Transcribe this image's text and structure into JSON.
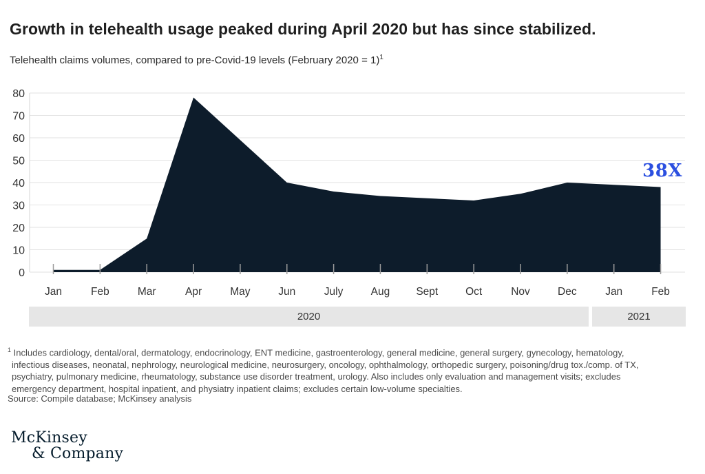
{
  "header": {
    "title": "Growth in telehealth usage peaked during April 2020 but has since stabilized."
  },
  "subtitle": {
    "text": "Telehealth claims volumes, compared to pre-Covid-19 levels (February 2020 = 1)",
    "footnote_marker": "1"
  },
  "chart_data": {
    "type": "area",
    "title": "Growth in telehealth usage peaked during April 2020 but has since stabilized.",
    "subtitle": "Telehealth claims volumes, compared to pre-Covid-19 levels (February 2020 = 1)",
    "x": [
      "Jan",
      "Feb",
      "Mar",
      "Apr",
      "May",
      "Jun",
      "July",
      "Aug",
      "Sept",
      "Oct",
      "Nov",
      "Dec",
      "Jan",
      "Feb"
    ],
    "values": [
      1,
      1,
      15,
      78,
      59,
      40,
      36,
      34,
      33,
      32,
      35,
      40,
      39,
      38
    ],
    "y_ticks": [
      0,
      10,
      20,
      30,
      40,
      50,
      60,
      70,
      80
    ],
    "ylim": [
      0,
      80
    ],
    "grid": "horizontal",
    "legend": "none",
    "fill_color": "#0d1c2b",
    "gridline_color": "#e2e2e2",
    "axis_line_color": "#d5d5d5",
    "tick_color": "#9b9b9b",
    "label_color": "#333333",
    "annotation": {
      "text": "38X",
      "color": "#2b4fe0"
    },
    "year_bands": [
      {
        "label": "2020",
        "months": 12
      },
      {
        "label": "2021",
        "months": 2
      }
    ]
  },
  "footnote": {
    "marker": "1",
    "lines": [
      "Includes cardiology, dental/oral, dermatology, endocrinology, ENT medicine, gastroenterology, general medicine, general surgery, gynecology, hematology,",
      "infectious diseases, neonatal, nephrology, neurological medicine, neurosurgery, oncology, ophthalmology, orthopedic surgery, poisoning/drug tox./comp. of TX,",
      "psychiatry, pulmonary medicine, rheumatology, substance use disorder treatment, urology. Also includes only evaluation and management visits; excludes",
      "emergency department, hospital inpatient, and physiatry inpatient claims; excludes certain low-volume specialties."
    ],
    "source": "Source: Compile database; McKinsey analysis"
  },
  "logo": {
    "line1": "McKinsey",
    "line2": "& Company"
  }
}
